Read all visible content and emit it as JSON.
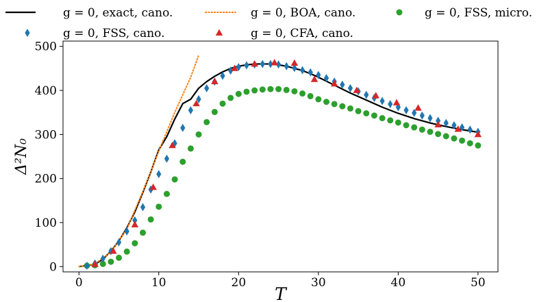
{
  "chart_data": {
    "type": "line",
    "xlabel": "T",
    "ylabel": "Δ²N₀",
    "xlim": [
      -2,
      52.5
    ],
    "ylim": [
      -12,
      512
    ],
    "xticks": [
      0,
      10,
      20,
      30,
      40,
      50
    ],
    "yticks": [
      0,
      100,
      200,
      300,
      400,
      500
    ],
    "grid": false,
    "legend_position": "top",
    "series": [
      {
        "name": "g = 0, exact, cano.",
        "style": "line",
        "color": "#000000",
        "x": [
          0,
          2,
          3,
          4,
          5,
          6,
          7,
          8,
          9,
          10,
          11,
          12,
          13,
          14,
          15,
          16,
          17,
          18,
          19,
          20,
          21,
          22,
          23,
          24,
          25,
          26,
          27,
          28,
          29,
          30,
          32,
          34,
          36,
          38,
          40,
          42,
          44,
          46,
          48,
          50
        ],
        "values": [
          0,
          5,
          17,
          35,
          58,
          88,
          124,
          168,
          215,
          265,
          295,
          335,
          370,
          380,
          405,
          420,
          432,
          442,
          450,
          455,
          458,
          460,
          460,
          460,
          458,
          455,
          450,
          445,
          438,
          430,
          412,
          394,
          378,
          362,
          348,
          336,
          326,
          318,
          311,
          305
        ]
      },
      {
        "name": "g = 0, BOA, cano.",
        "style": "dotted",
        "color": "#ff7f0e",
        "x": [
          0,
          2,
          4,
          6,
          8,
          10,
          12,
          14,
          15
        ],
        "values": [
          0,
          6,
          33,
          85,
          170,
          262,
          350,
          430,
          480
        ]
      },
      {
        "name": "g = 0, FSS, micro.",
        "style": "circle",
        "color": "#2ca02c",
        "x": [
          1,
          2,
          3,
          4,
          5,
          6,
          7,
          8,
          9,
          10,
          11,
          12,
          13,
          14,
          15,
          16,
          17,
          18,
          19,
          20,
          21,
          22,
          23,
          24,
          25,
          26,
          27,
          28,
          29,
          30,
          31,
          32,
          33,
          34,
          35,
          36,
          37,
          38,
          39,
          40,
          41,
          42,
          43,
          44,
          45,
          46,
          47,
          48,
          49,
          50
        ],
        "values": [
          2,
          3,
          6,
          11,
          20,
          34,
          53,
          77,
          107,
          136,
          165,
          198,
          238,
          268,
          300,
          328,
          351,
          370,
          383,
          392,
          397,
          400,
          402,
          403,
          403,
          401,
          398,
          393,
          387,
          380,
          374,
          369,
          364,
          359,
          353,
          348,
          343,
          337,
          332,
          327,
          321,
          316,
          311,
          306,
          301,
          296,
          291,
          286,
          280,
          275
        ]
      },
      {
        "name": "g = 0, FSS, cano.",
        "style": "diamond",
        "color": "#1f77b4",
        "x": [
          1,
          2,
          3,
          4,
          5,
          6,
          7,
          8,
          9,
          10,
          11,
          12,
          13,
          14,
          15,
          16,
          17,
          18,
          19,
          20,
          21,
          22,
          23,
          24,
          25,
          26,
          27,
          28,
          29,
          30,
          31,
          32,
          33,
          34,
          35,
          36,
          37,
          38,
          39,
          40,
          41,
          42,
          43,
          44,
          45,
          46,
          47,
          48,
          49,
          50
        ],
        "values": [
          2,
          7,
          18,
          35,
          55,
          80,
          105,
          135,
          175,
          210,
          245,
          280,
          315,
          355,
          380,
          405,
          420,
          433,
          445,
          453,
          457,
          459,
          460,
          460,
          459,
          455,
          451,
          446,
          441,
          435,
          428,
          420,
          413,
          405,
          398,
          390,
          383,
          376,
          369,
          362,
          355,
          349,
          343,
          337,
          331,
          326,
          321,
          316,
          311,
          306
        ]
      },
      {
        "name": "g = 0, CFA, cano.",
        "style": "triangle",
        "color": "#d62728",
        "x": [
          2,
          4.3,
          7,
          9.3,
          11.7,
          14.7,
          17,
          19.5,
          22,
          24.5,
          27,
          29.5,
          32,
          34.8,
          37.2,
          39.8,
          42.5,
          45,
          47.5,
          50
        ],
        "values": [
          5,
          35,
          95,
          180,
          275,
          370,
          420,
          450,
          460,
          463,
          462,
          425,
          415,
          400,
          388,
          372,
          360,
          322,
          312,
          300
        ]
      }
    ]
  }
}
